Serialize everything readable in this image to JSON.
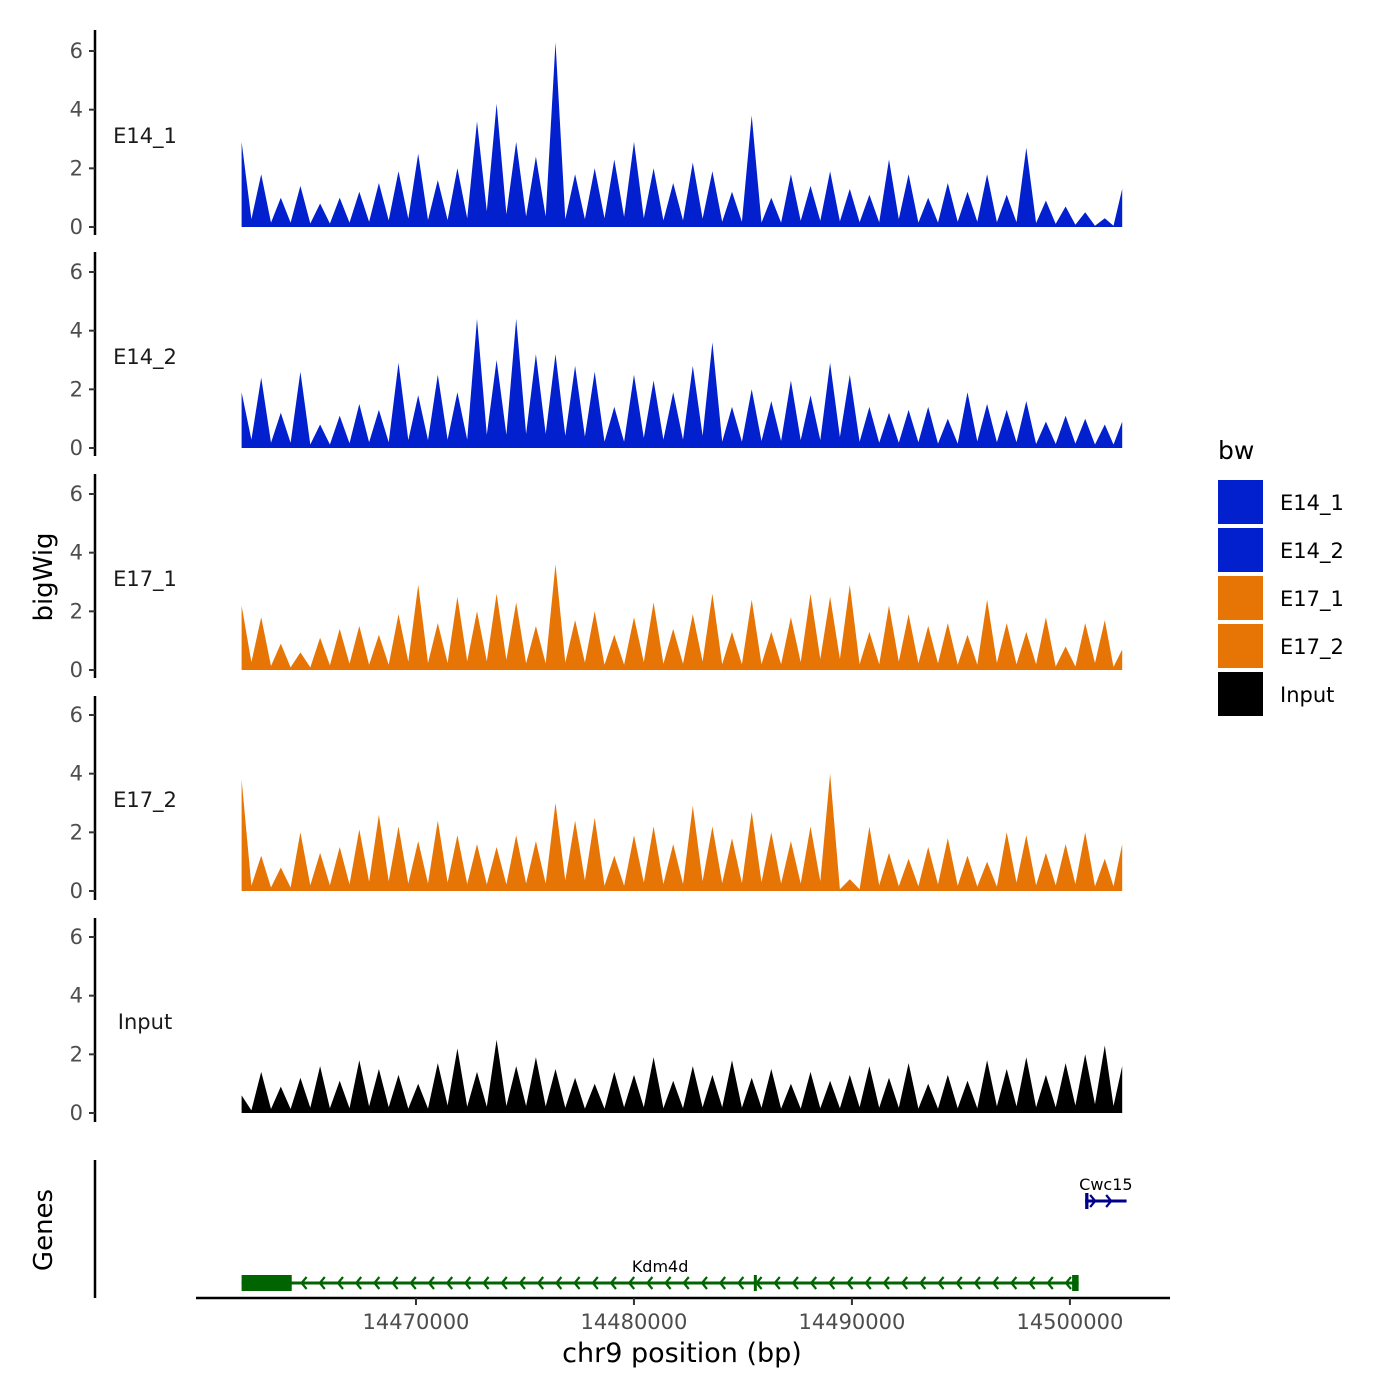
{
  "chart_data": {
    "type": "area",
    "ylabel": "bigWig",
    "genes_label": "Genes",
    "xlabel": "chr9 position (bp)",
    "xlim": [
      14460000,
      14504500
    ],
    "ylim": [
      0,
      6.5
    ],
    "yticks": [
      "0",
      "2",
      "4",
      "6"
    ],
    "xticks": [
      {
        "value": 14470000,
        "label": "14470000"
      },
      {
        "value": 14480000,
        "label": "14480000"
      },
      {
        "value": 14490000,
        "label": "14490000"
      },
      {
        "value": 14500000,
        "label": "14500000"
      }
    ],
    "legend": {
      "title": "bw",
      "position": "right",
      "items": [
        {
          "label": "E14_1",
          "color": "#0320cf"
        },
        {
          "label": "E14_2",
          "color": "#0320cf"
        },
        {
          "label": "E17_1",
          "color": "#e67506"
        },
        {
          "label": "E17_2",
          "color": "#e67506"
        },
        {
          "label": "Input",
          "color": "#000000"
        }
      ]
    },
    "series": [
      {
        "name": "E14_1",
        "label": "E14_1",
        "color": "#0320cf",
        "x": [
          14462000,
          14462900,
          14463800,
          14464700,
          14465600,
          14466500,
          14467400,
          14468300,
          14469200,
          14470100,
          14471000,
          14471900,
          14472800,
          14473700,
          14474600,
          14475500,
          14476400,
          14477300,
          14478200,
          14479100,
          14480000,
          14480900,
          14481800,
          14482700,
          14483600,
          14484500,
          14485400,
          14486300,
          14487200,
          14488100,
          14489000,
          14489900,
          14490800,
          14491700,
          14492600,
          14493500,
          14494400,
          14495300,
          14496200,
          14497100,
          14498000,
          14498900,
          14499800,
          14500700,
          14501600,
          14502400
        ],
        "values": [
          2.9,
          1.8,
          1.0,
          1.4,
          0.8,
          1.0,
          1.2,
          1.5,
          1.9,
          2.5,
          1.6,
          2.0,
          3.6,
          4.2,
          2.9,
          2.4,
          6.3,
          1.8,
          2.0,
          2.3,
          2.9,
          2.0,
          1.5,
          2.2,
          1.9,
          1.2,
          3.8,
          1.0,
          1.8,
          1.4,
          1.9,
          1.3,
          1.1,
          2.3,
          1.8,
          1.0,
          1.5,
          1.2,
          1.8,
          1.1,
          2.7,
          0.9,
          0.7,
          0.5,
          0.3,
          1.3
        ]
      },
      {
        "name": "E14_2",
        "label": "E14_2",
        "color": "#0320cf",
        "x": [
          14462000,
          14462900,
          14463800,
          14464700,
          14465600,
          14466500,
          14467400,
          14468300,
          14469200,
          14470100,
          14471000,
          14471900,
          14472800,
          14473700,
          14474600,
          14475500,
          14476400,
          14477300,
          14478200,
          14479100,
          14480000,
          14480900,
          14481800,
          14482700,
          14483600,
          14484500,
          14485400,
          14486300,
          14487200,
          14488100,
          14489000,
          14489900,
          14490800,
          14491700,
          14492600,
          14493500,
          14494400,
          14495300,
          14496200,
          14497100,
          14498000,
          14498900,
          14499800,
          14500700,
          14501600,
          14502400
        ],
        "values": [
          1.9,
          2.4,
          1.2,
          2.6,
          0.8,
          1.1,
          1.5,
          1.3,
          2.9,
          1.8,
          2.5,
          1.9,
          4.4,
          3.0,
          4.4,
          3.2,
          3.2,
          2.8,
          2.6,
          1.4,
          2.5,
          2.3,
          1.9,
          2.8,
          3.6,
          1.4,
          2.0,
          1.6,
          2.3,
          1.8,
          2.9,
          2.5,
          1.4,
          1.2,
          1.3,
          1.4,
          1.0,
          1.9,
          1.5,
          1.3,
          1.6,
          0.9,
          1.1,
          1.0,
          0.8,
          0.9
        ]
      },
      {
        "name": "E17_1",
        "label": "E17_1",
        "color": "#e67506",
        "x": [
          14462000,
          14462900,
          14463800,
          14464700,
          14465600,
          14466500,
          14467400,
          14468300,
          14469200,
          14470100,
          14471000,
          14471900,
          14472800,
          14473700,
          14474600,
          14475500,
          14476400,
          14477300,
          14478200,
          14479100,
          14480000,
          14480900,
          14481800,
          14482700,
          14483600,
          14484500,
          14485400,
          14486300,
          14487200,
          14488100,
          14489000,
          14489900,
          14490800,
          14491700,
          14492600,
          14493500,
          14494400,
          14495300,
          14496200,
          14497100,
          14498000,
          14498900,
          14499800,
          14500700,
          14501600,
          14502400
        ],
        "values": [
          2.2,
          1.8,
          0.9,
          0.6,
          1.1,
          1.4,
          1.5,
          1.2,
          1.9,
          2.9,
          1.6,
          2.5,
          2.0,
          2.6,
          2.3,
          1.5,
          3.6,
          1.7,
          2.0,
          1.2,
          1.8,
          2.3,
          1.4,
          1.9,
          2.6,
          1.3,
          2.4,
          1.3,
          1.8,
          2.6,
          2.5,
          2.9,
          1.3,
          2.2,
          1.9,
          1.5,
          1.6,
          1.2,
          2.4,
          1.6,
          1.3,
          1.8,
          0.8,
          1.6,
          1.7,
          0.7
        ]
      },
      {
        "name": "E17_2",
        "label": "E17_2",
        "color": "#e67506",
        "x": [
          14462000,
          14462900,
          14463800,
          14464700,
          14465600,
          14466500,
          14467400,
          14468300,
          14469200,
          14470100,
          14471000,
          14471900,
          14472800,
          14473700,
          14474600,
          14475500,
          14476400,
          14477300,
          14478200,
          14479100,
          14480000,
          14480900,
          14481800,
          14482700,
          14483600,
          14484500,
          14485400,
          14486300,
          14487200,
          14488100,
          14489000,
          14489900,
          14490800,
          14491700,
          14492600,
          14493500,
          14494400,
          14495300,
          14496200,
          14497100,
          14498000,
          14498900,
          14499800,
          14500700,
          14501600,
          14502400
        ],
        "values": [
          3.8,
          1.2,
          0.8,
          2.0,
          1.3,
          1.5,
          2.1,
          2.6,
          2.2,
          1.7,
          2.4,
          1.9,
          1.6,
          1.5,
          1.9,
          1.7,
          3.0,
          2.4,
          2.5,
          1.2,
          1.9,
          2.2,
          1.6,
          2.9,
          2.2,
          1.8,
          2.7,
          2.0,
          1.7,
          2.2,
          4.0,
          0.4,
          2.2,
          1.3,
          1.1,
          1.5,
          1.8,
          1.2,
          1.0,
          2.0,
          1.9,
          1.3,
          1.6,
          2.0,
          1.1,
          1.6
        ]
      },
      {
        "name": "Input",
        "label": "Input",
        "color": "#000000",
        "x": [
          14462000,
          14462900,
          14463800,
          14464700,
          14465600,
          14466500,
          14467400,
          14468300,
          14469200,
          14470100,
          14471000,
          14471900,
          14472800,
          14473700,
          14474600,
          14475500,
          14476400,
          14477300,
          14478200,
          14479100,
          14480000,
          14480900,
          14481800,
          14482700,
          14483600,
          14484500,
          14485400,
          14486300,
          14487200,
          14488100,
          14489000,
          14489900,
          14490800,
          14491700,
          14492600,
          14493500,
          14494400,
          14495300,
          14496200,
          14497100,
          14498000,
          14498900,
          14499800,
          14500700,
          14501600,
          14502400
        ],
        "values": [
          0.6,
          1.4,
          0.9,
          1.2,
          1.6,
          1.1,
          1.8,
          1.5,
          1.3,
          1.0,
          1.7,
          2.2,
          1.4,
          2.5,
          1.6,
          1.9,
          1.5,
          1.2,
          1.0,
          1.4,
          1.3,
          1.9,
          1.1,
          1.6,
          1.3,
          1.8,
          1.2,
          1.5,
          1.0,
          1.4,
          1.1,
          1.3,
          1.6,
          1.2,
          1.7,
          1.0,
          1.3,
          1.1,
          1.8,
          1.5,
          1.9,
          1.3,
          1.7,
          2.0,
          2.3,
          1.6
        ]
      }
    ],
    "genes": [
      {
        "name": "Kdm4d",
        "start": 14462000,
        "end": 14500400,
        "strand": "-",
        "color": "#006400",
        "row": 1,
        "blocks": [
          [
            14462000,
            14464300
          ],
          [
            14485500,
            14485600
          ],
          [
            14500100,
            14500400
          ]
        ]
      },
      {
        "name": "Cwc15",
        "start": 14500700,
        "end": 14502600,
        "strand": "+",
        "color": "#00008b",
        "row": 2,
        "blocks": [
          [
            14500700,
            14500850
          ]
        ]
      }
    ]
  }
}
